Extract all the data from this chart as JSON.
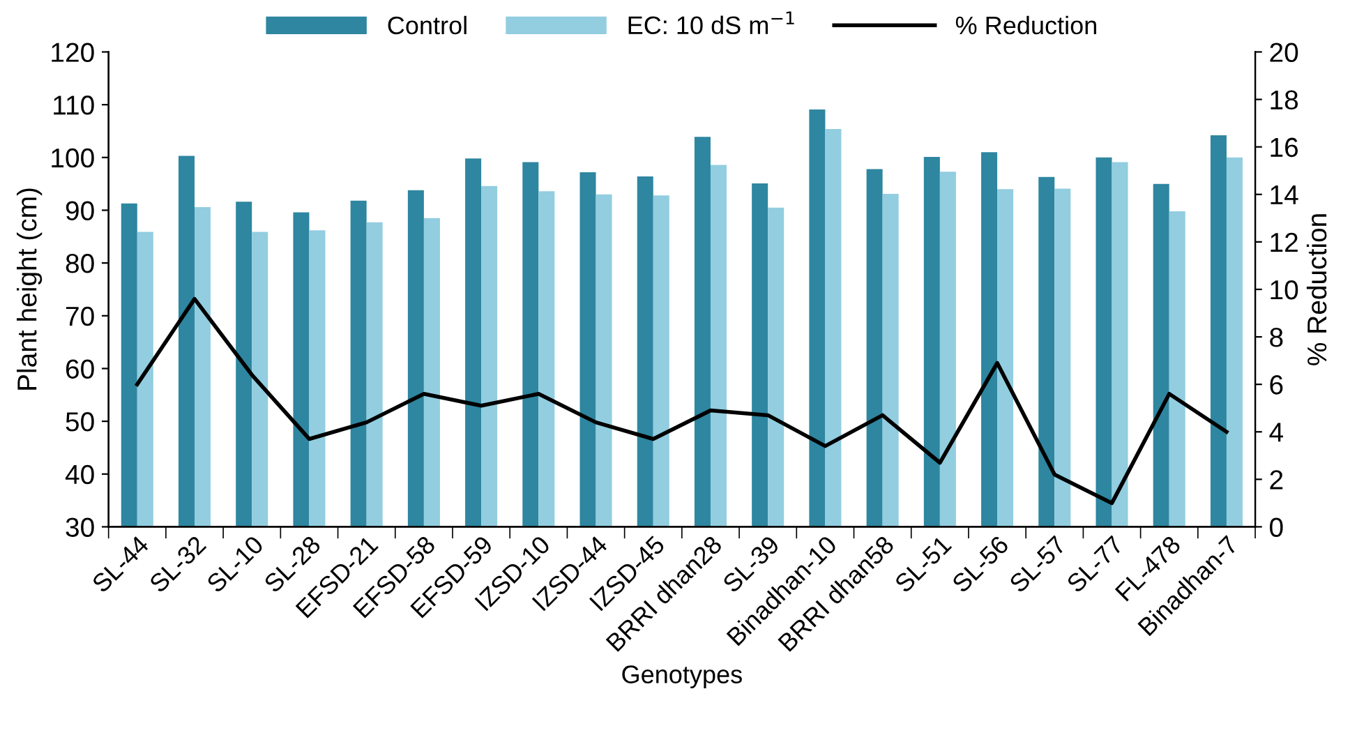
{
  "chart_data": {
    "type": "bar",
    "xlabel": "Genotypes",
    "ylabel": "Plant height (cm)",
    "y2label": "% Reduction",
    "categories": [
      "SL-44",
      "SL-32",
      "SL-10",
      "SL-28",
      "EFSD-21",
      "EFSD-58",
      "EFSD-59",
      "IZSD-10",
      "IZSD-44",
      "IZSD-45",
      "BRRI dhan28",
      "SL-39",
      "Binadhan-10",
      "BRRI dhan58",
      "SL-51",
      "SL-56",
      "SL-57",
      "SL-77",
      "FL-478",
      "Binadhan-7"
    ],
    "series": [
      {
        "name": "Control",
        "color": "#2e86a0",
        "values": [
          91.3,
          100.3,
          91.6,
          89.6,
          91.8,
          93.8,
          99.8,
          99.1,
          97.2,
          96.4,
          103.9,
          95.1,
          109.1,
          97.8,
          100.1,
          101.0,
          96.3,
          100.0,
          95.0,
          104.2
        ]
      },
      {
        "name": "EC: 10 dS m$^{−1}$",
        "color": "#92cde0",
        "values": [
          85.9,
          90.6,
          85.9,
          86.2,
          87.7,
          88.5,
          94.6,
          93.6,
          93.0,
          92.8,
          98.6,
          90.5,
          105.4,
          93.1,
          97.3,
          94.0,
          94.1,
          99.1,
          89.8,
          100.0
        ]
      },
      {
        "name": "% Reduction",
        "type": "line",
        "axis": "y2",
        "color": "#000000",
        "values": [
          6.0,
          9.6,
          6.4,
          3.7,
          4.4,
          5.6,
          5.1,
          5.6,
          4.4,
          3.7,
          4.9,
          4.7,
          3.4,
          4.7,
          2.7,
          6.9,
          2.2,
          1.0,
          5.6,
          4.0
        ]
      }
    ],
    "ylim": [
      30,
      120
    ],
    "yticks": [
      30,
      40,
      50,
      60,
      70,
      80,
      90,
      100,
      110,
      120
    ],
    "y2lim": [
      0,
      20
    ],
    "y2ticks": [
      0,
      2,
      4,
      6,
      8,
      10,
      12,
      14,
      16,
      18,
      20
    ],
    "legend": "top",
    "grid": false,
    "marker": "none",
    "line_style": "solid"
  }
}
